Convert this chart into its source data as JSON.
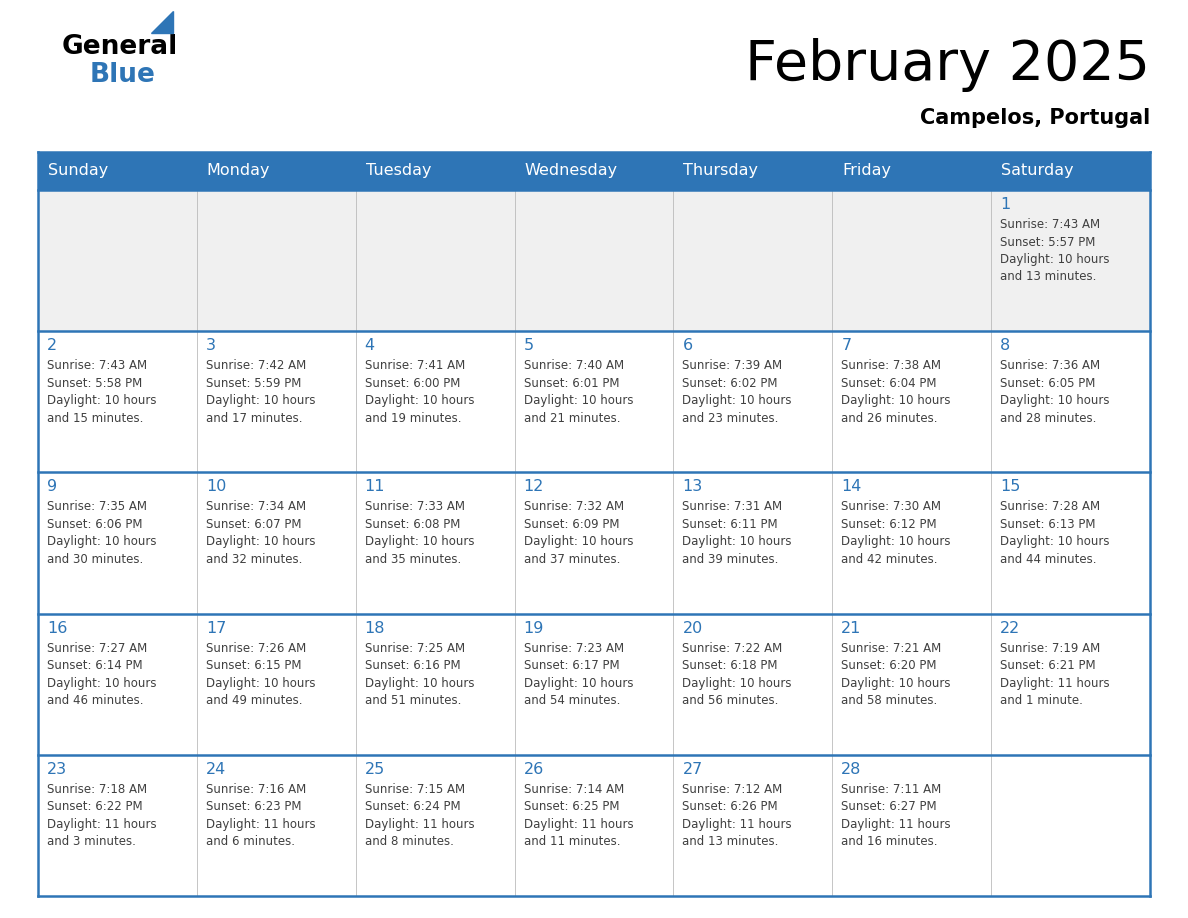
{
  "title": "February 2025",
  "subtitle": "Campelos, Portugal",
  "header_bg_color": "#2E75B6",
  "header_text_color": "#FFFFFF",
  "border_color": "#2E75B6",
  "day_headers": [
    "Sunday",
    "Monday",
    "Tuesday",
    "Wednesday",
    "Thursday",
    "Friday",
    "Saturday"
  ],
  "title_color": "#000000",
  "subtitle_color": "#000000",
  "date_color": "#2E75B6",
  "info_color": "#404040",
  "logo_general_color": "#000000",
  "logo_blue_color": "#2E75B6",
  "logo_triangle_color": "#2E75B6",
  "row0_bg": "#F0F0F0",
  "rowN_bg": "#FFFFFF",
  "calendar_data": [
    [
      {
        "day": "",
        "info": ""
      },
      {
        "day": "",
        "info": ""
      },
      {
        "day": "",
        "info": ""
      },
      {
        "day": "",
        "info": ""
      },
      {
        "day": "",
        "info": ""
      },
      {
        "day": "",
        "info": ""
      },
      {
        "day": "1",
        "info": "Sunrise: 7:43 AM\nSunset: 5:57 PM\nDaylight: 10 hours\nand 13 minutes."
      }
    ],
    [
      {
        "day": "2",
        "info": "Sunrise: 7:43 AM\nSunset: 5:58 PM\nDaylight: 10 hours\nand 15 minutes."
      },
      {
        "day": "3",
        "info": "Sunrise: 7:42 AM\nSunset: 5:59 PM\nDaylight: 10 hours\nand 17 minutes."
      },
      {
        "day": "4",
        "info": "Sunrise: 7:41 AM\nSunset: 6:00 PM\nDaylight: 10 hours\nand 19 minutes."
      },
      {
        "day": "5",
        "info": "Sunrise: 7:40 AM\nSunset: 6:01 PM\nDaylight: 10 hours\nand 21 minutes."
      },
      {
        "day": "6",
        "info": "Sunrise: 7:39 AM\nSunset: 6:02 PM\nDaylight: 10 hours\nand 23 minutes."
      },
      {
        "day": "7",
        "info": "Sunrise: 7:38 AM\nSunset: 6:04 PM\nDaylight: 10 hours\nand 26 minutes."
      },
      {
        "day": "8",
        "info": "Sunrise: 7:36 AM\nSunset: 6:05 PM\nDaylight: 10 hours\nand 28 minutes."
      }
    ],
    [
      {
        "day": "9",
        "info": "Sunrise: 7:35 AM\nSunset: 6:06 PM\nDaylight: 10 hours\nand 30 minutes."
      },
      {
        "day": "10",
        "info": "Sunrise: 7:34 AM\nSunset: 6:07 PM\nDaylight: 10 hours\nand 32 minutes."
      },
      {
        "day": "11",
        "info": "Sunrise: 7:33 AM\nSunset: 6:08 PM\nDaylight: 10 hours\nand 35 minutes."
      },
      {
        "day": "12",
        "info": "Sunrise: 7:32 AM\nSunset: 6:09 PM\nDaylight: 10 hours\nand 37 minutes."
      },
      {
        "day": "13",
        "info": "Sunrise: 7:31 AM\nSunset: 6:11 PM\nDaylight: 10 hours\nand 39 minutes."
      },
      {
        "day": "14",
        "info": "Sunrise: 7:30 AM\nSunset: 6:12 PM\nDaylight: 10 hours\nand 42 minutes."
      },
      {
        "day": "15",
        "info": "Sunrise: 7:28 AM\nSunset: 6:13 PM\nDaylight: 10 hours\nand 44 minutes."
      }
    ],
    [
      {
        "day": "16",
        "info": "Sunrise: 7:27 AM\nSunset: 6:14 PM\nDaylight: 10 hours\nand 46 minutes."
      },
      {
        "day": "17",
        "info": "Sunrise: 7:26 AM\nSunset: 6:15 PM\nDaylight: 10 hours\nand 49 minutes."
      },
      {
        "day": "18",
        "info": "Sunrise: 7:25 AM\nSunset: 6:16 PM\nDaylight: 10 hours\nand 51 minutes."
      },
      {
        "day": "19",
        "info": "Sunrise: 7:23 AM\nSunset: 6:17 PM\nDaylight: 10 hours\nand 54 minutes."
      },
      {
        "day": "20",
        "info": "Sunrise: 7:22 AM\nSunset: 6:18 PM\nDaylight: 10 hours\nand 56 minutes."
      },
      {
        "day": "21",
        "info": "Sunrise: 7:21 AM\nSunset: 6:20 PM\nDaylight: 10 hours\nand 58 minutes."
      },
      {
        "day": "22",
        "info": "Sunrise: 7:19 AM\nSunset: 6:21 PM\nDaylight: 11 hours\nand 1 minute."
      }
    ],
    [
      {
        "day": "23",
        "info": "Sunrise: 7:18 AM\nSunset: 6:22 PM\nDaylight: 11 hours\nand 3 minutes."
      },
      {
        "day": "24",
        "info": "Sunrise: 7:16 AM\nSunset: 6:23 PM\nDaylight: 11 hours\nand 6 minutes."
      },
      {
        "day": "25",
        "info": "Sunrise: 7:15 AM\nSunset: 6:24 PM\nDaylight: 11 hours\nand 8 minutes."
      },
      {
        "day": "26",
        "info": "Sunrise: 7:14 AM\nSunset: 6:25 PM\nDaylight: 11 hours\nand 11 minutes."
      },
      {
        "day": "27",
        "info": "Sunrise: 7:12 AM\nSunset: 6:26 PM\nDaylight: 11 hours\nand 13 minutes."
      },
      {
        "day": "28",
        "info": "Sunrise: 7:11 AM\nSunset: 6:27 PM\nDaylight: 11 hours\nand 16 minutes."
      },
      {
        "day": "",
        "info": ""
      }
    ]
  ]
}
